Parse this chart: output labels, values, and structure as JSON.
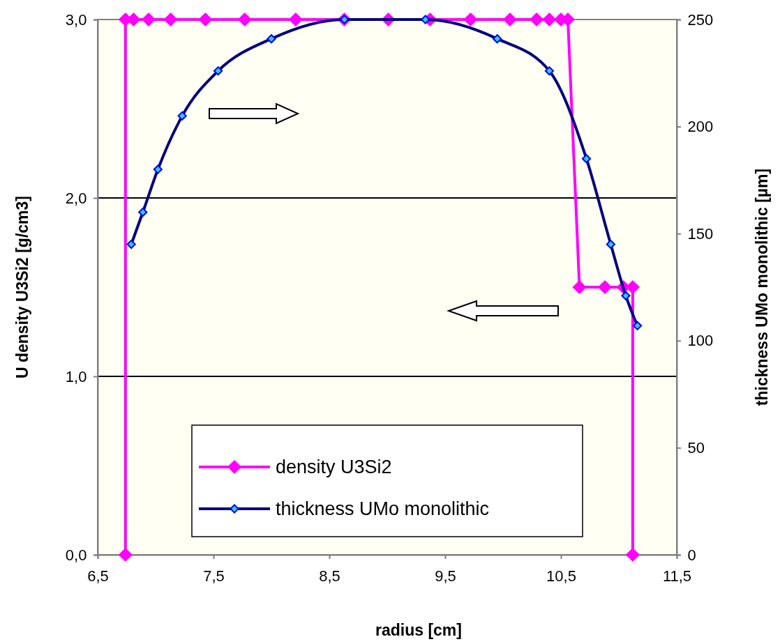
{
  "chart_data": {
    "type": "line",
    "xlabel": "radius [cm]",
    "ylabel": "U density U3Si2 [g/cm3]",
    "y2label": "thickness UMo monolithic [µm]",
    "xlim": [
      6.5,
      11.5
    ],
    "xticks": [
      {
        "value": 6.5,
        "label": "6,5"
      },
      {
        "value": 7.5,
        "label": "7,5"
      },
      {
        "value": 8.5,
        "label": "8,5"
      },
      {
        "value": 9.5,
        "label": "9,5"
      },
      {
        "value": 10.5,
        "label": "10,5"
      },
      {
        "value": 11.5,
        "label": "11,5"
      }
    ],
    "ylim": [
      0,
      3
    ],
    "yticks": [
      {
        "value": 0,
        "label": "0,0"
      },
      {
        "value": 1,
        "label": "1,0"
      },
      {
        "value": 2,
        "label": "2,0"
      },
      {
        "value": 3,
        "label": "3,0"
      }
    ],
    "y2lim": [
      0,
      250
    ],
    "y2ticks": [
      0,
      50,
      100,
      150,
      200,
      250
    ],
    "grid": "y",
    "legend": "bottom",
    "marker": "diamond",
    "series": [
      {
        "name": "density U3Si2",
        "color": "#ff00ff",
        "x": [
          6.74,
          6.74,
          6.81,
          6.94,
          7.13,
          7.43,
          7.77,
          8.21,
          8.63,
          9.01,
          9.37,
          9.72,
          10.06,
          10.29,
          10.4,
          10.5,
          10.56,
          10.66,
          10.88,
          11.04,
          11.12,
          11.12
        ],
        "values": [
          0,
          3,
          3,
          3,
          3,
          3,
          3,
          3,
          3,
          3,
          3,
          3,
          3,
          3,
          3,
          3,
          3,
          1.5,
          1.5,
          1.5,
          1.5,
          0
        ]
      },
      {
        "name": "thickness UMo monolithic",
        "color": "#000080",
        "axis": "y2",
        "x": [
          6.79,
          6.89,
          7.02,
          7.23,
          7.54,
          8.0,
          8.63,
          9.33,
          9.95,
          10.4,
          10.72,
          10.93,
          11.06,
          11.16
        ],
        "values": [
          145,
          160,
          180,
          205,
          226,
          241,
          250,
          250,
          241,
          226,
          185,
          145,
          121,
          107
        ]
      }
    ]
  }
}
